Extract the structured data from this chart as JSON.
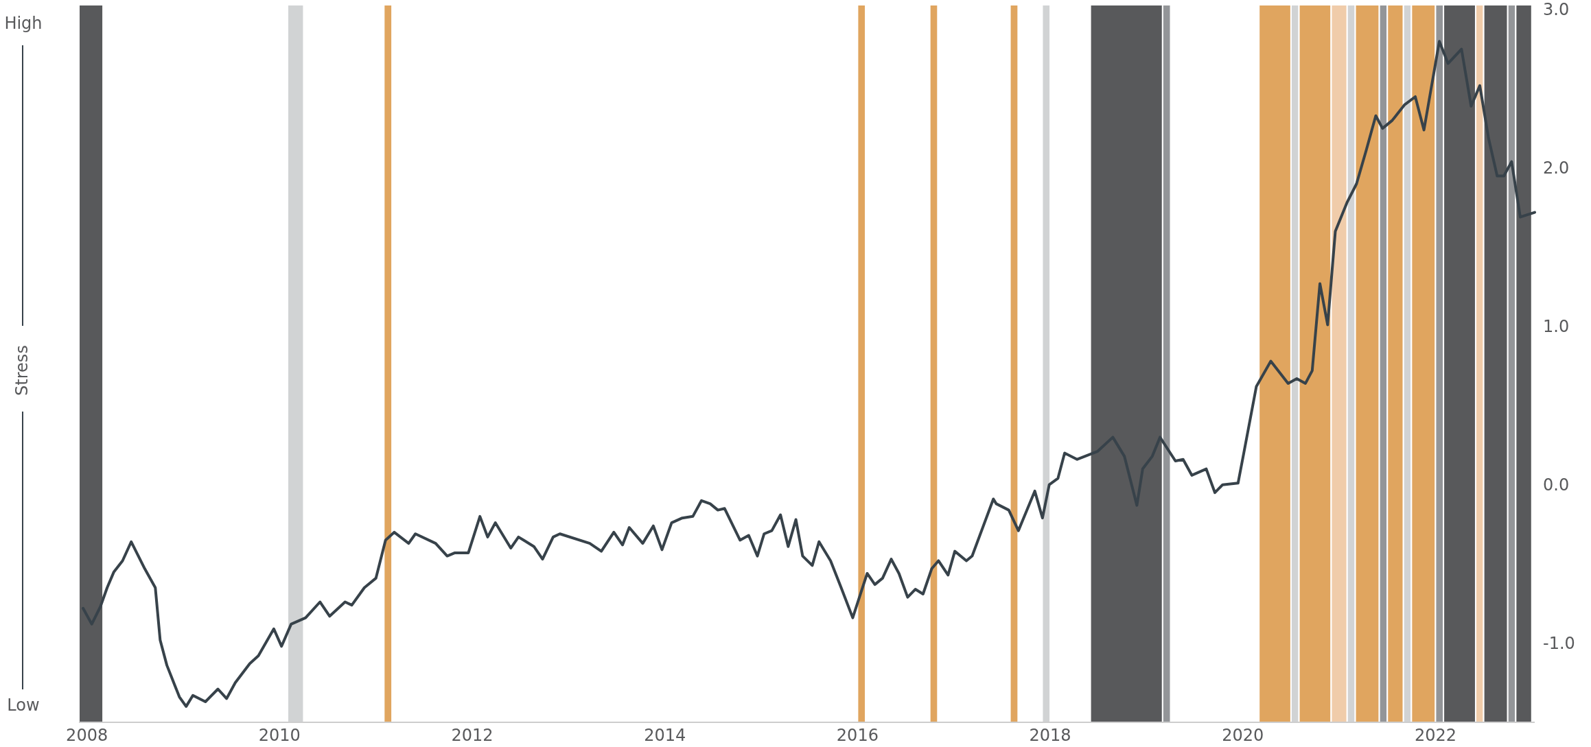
{
  "chart_data": {
    "type": "line",
    "ylabel": "Stress",
    "annotations": [
      "High",
      "Low"
    ],
    "xlim": [
      2007.917,
      2023.03
    ],
    "xticks": [
      2008,
      2010,
      2012,
      2014,
      2016,
      2018,
      2020,
      2022
    ],
    "ylim": [
      -1.5,
      3.0
    ],
    "yticks": [
      {
        "value": 3,
        "label": "3.0"
      },
      {
        "value": 2,
        "label": "2.0"
      },
      {
        "value": 1,
        "label": "1.0"
      },
      {
        "value": 0,
        "label": "0.0"
      },
      {
        "value": -1,
        "label": "-1.0"
      }
    ],
    "grid": false,
    "marker": "none",
    "line_style": "solid",
    "series": [
      {
        "color": "#37424a",
        "x": [
          2007.96,
          2008.05,
          2008.14,
          2008.21,
          2008.28,
          2008.37,
          2008.46,
          2008.6,
          2008.71,
          2008.76,
          2008.83,
          2008.96,
          2009.03,
          2009.1,
          2009.23,
          2009.36,
          2009.45,
          2009.54,
          2009.69,
          2009.78,
          2009.94,
          2010.02,
          2010.12,
          2010.27,
          2010.42,
          2010.52,
          2010.68,
          2010.75,
          2010.88,
          2011.0,
          2011.1,
          2011.19,
          2011.34,
          2011.41,
          2011.62,
          2011.74,
          2011.82,
          2011.96,
          2012.08,
          2012.16,
          2012.24,
          2012.4,
          2012.48,
          2012.64,
          2012.73,
          2012.84,
          2012.91,
          2013.22,
          2013.34,
          2013.47,
          2013.56,
          2013.63,
          2013.77,
          2013.88,
          2013.97,
          2014.07,
          2014.18,
          2014.29,
          2014.38,
          2014.47,
          2014.55,
          2014.62,
          2014.78,
          2014.87,
          2014.96,
          2015.03,
          2015.11,
          2015.2,
          2015.28,
          2015.36,
          2015.43,
          2015.53,
          2015.6,
          2015.72,
          2015.83,
          2015.95,
          2016.1,
          2016.18,
          2016.26,
          2016.35,
          2016.43,
          2016.52,
          2016.6,
          2016.68,
          2016.77,
          2016.84,
          2016.94,
          2017.01,
          2017.13,
          2017.19,
          2017.41,
          2017.44,
          2017.57,
          2017.67,
          2017.84,
          2017.92,
          2017.99,
          2018.08,
          2018.15,
          2018.28,
          2018.49,
          2018.65,
          2018.77,
          2018.9,
          2018.96,
          2019.06,
          2019.14,
          2019.3,
          2019.38,
          2019.47,
          2019.62,
          2019.71,
          2019.79,
          2019.95,
          2020.01,
          2020.14,
          2020.29,
          2020.47,
          2020.56,
          2020.65,
          2020.72,
          2020.8,
          2020.88,
          2020.96,
          2021.08,
          2021.18,
          2021.28,
          2021.38,
          2021.45,
          2021.55,
          2021.68,
          2021.79,
          2021.88,
          2022.04,
          2022.13,
          2022.27,
          2022.37,
          2022.46,
          2022.55,
          2022.64,
          2022.71,
          2022.79,
          2022.88,
          2023.03
        ],
        "values": [
          -0.78,
          -0.88,
          -0.77,
          -0.65,
          -0.55,
          -0.48,
          -0.36,
          -0.53,
          -0.65,
          -0.98,
          -1.14,
          -1.34,
          -1.4,
          -1.33,
          -1.37,
          -1.29,
          -1.35,
          -1.25,
          -1.13,
          -1.08,
          -0.91,
          -1.02,
          -0.88,
          -0.84,
          -0.74,
          -0.83,
          -0.74,
          -0.76,
          -0.65,
          -0.59,
          -0.35,
          -0.3,
          -0.37,
          -0.31,
          -0.37,
          -0.45,
          -0.43,
          -0.43,
          -0.2,
          -0.33,
          -0.24,
          -0.4,
          -0.33,
          -0.39,
          -0.47,
          -0.33,
          -0.31,
          -0.37,
          -0.42,
          -0.3,
          -0.38,
          -0.27,
          -0.37,
          -0.26,
          -0.41,
          -0.24,
          -0.21,
          -0.2,
          -0.1,
          -0.12,
          -0.16,
          -0.15,
          -0.35,
          -0.32,
          -0.45,
          -0.31,
          -0.29,
          -0.19,
          -0.39,
          -0.22,
          -0.45,
          -0.51,
          -0.36,
          -0.48,
          -0.65,
          -0.84,
          -0.56,
          -0.63,
          -0.59,
          -0.47,
          -0.56,
          -0.71,
          -0.66,
          -0.69,
          -0.53,
          -0.48,
          -0.57,
          -0.42,
          -0.48,
          -0.45,
          -0.09,
          -0.12,
          -0.16,
          -0.29,
          -0.04,
          -0.21,
          0.0,
          0.04,
          0.2,
          0.16,
          0.21,
          0.3,
          0.18,
          -0.13,
          0.1,
          0.18,
          0.3,
          0.15,
          0.16,
          0.06,
          0.1,
          -0.05,
          0.0,
          0.01,
          0.2,
          0.62,
          0.78,
          0.64,
          0.67,
          0.64,
          0.72,
          1.27,
          1.01,
          1.6,
          1.78,
          1.9,
          2.11,
          2.33,
          2.25,
          2.3,
          2.4,
          2.45,
          2.24,
          2.8,
          2.66,
          2.75,
          2.39,
          2.52,
          2.19,
          1.95,
          1.95,
          2.04,
          1.69,
          1.72
        ]
      }
    ],
    "bands": [
      {
        "axis": "x",
        "from": 2007.917,
        "to": 2008.167,
        "color": "#58595b"
      },
      {
        "axis": "x",
        "from": 2010.083,
        "to": 2010.25,
        "color": "#d1d3d4"
      },
      {
        "axis": "x",
        "from": 2011.083,
        "to": 2011.167,
        "color": "#e0a55f"
      },
      {
        "axis": "x",
        "from": 2016.0,
        "to": 2016.083,
        "color": "#e0a55f"
      },
      {
        "axis": "x",
        "from": 2016.75,
        "to": 2016.833,
        "color": "#e0a55f"
      },
      {
        "axis": "x",
        "from": 2017.583,
        "to": 2017.667,
        "color": "#e0a55f"
      },
      {
        "axis": "x",
        "from": 2017.917,
        "to": 2018.0,
        "color": "#d1d3d4"
      },
      {
        "axis": "x",
        "from": 2018.417,
        "to": 2019.167,
        "color": "#58595b"
      },
      {
        "axis": "x",
        "from": 2019.167,
        "to": 2019.25,
        "color": "#939598"
      },
      {
        "axis": "x",
        "from": 2020.167,
        "to": 2020.5,
        "color": "#e0a55f"
      },
      {
        "axis": "x",
        "from": 2020.5,
        "to": 2020.583,
        "color": "#d1d3d4"
      },
      {
        "axis": "x",
        "from": 2020.583,
        "to": 2020.917,
        "color": "#e0a55f"
      },
      {
        "axis": "x",
        "from": 2020.917,
        "to": 2021.083,
        "color": "#f0ccaa"
      },
      {
        "axis": "x",
        "from": 2021.083,
        "to": 2021.167,
        "color": "#d1d3d4"
      },
      {
        "axis": "x",
        "from": 2021.167,
        "to": 2021.417,
        "color": "#e0a55f"
      },
      {
        "axis": "x",
        "from": 2021.417,
        "to": 2021.5,
        "color": "#939598"
      },
      {
        "axis": "x",
        "from": 2021.5,
        "to": 2021.667,
        "color": "#e0a55f"
      },
      {
        "axis": "x",
        "from": 2021.667,
        "to": 2021.75,
        "color": "#d1d3d4"
      },
      {
        "axis": "x",
        "from": 2021.75,
        "to": 2022.0,
        "color": "#e0a55f"
      },
      {
        "axis": "x",
        "from": 2022.0,
        "to": 2022.083,
        "color": "#939598"
      },
      {
        "axis": "x",
        "from": 2022.083,
        "to": 2022.417,
        "color": "#58595b"
      },
      {
        "axis": "x",
        "from": 2022.417,
        "to": 2022.5,
        "color": "#f0ccaa"
      },
      {
        "axis": "x",
        "from": 2022.5,
        "to": 2022.75,
        "color": "#58595b"
      },
      {
        "axis": "x",
        "from": 2022.75,
        "to": 2022.833,
        "color": "#939598"
      },
      {
        "axis": "x",
        "from": 2022.833,
        "to": 2023.0,
        "color": "#58595b"
      }
    ]
  }
}
